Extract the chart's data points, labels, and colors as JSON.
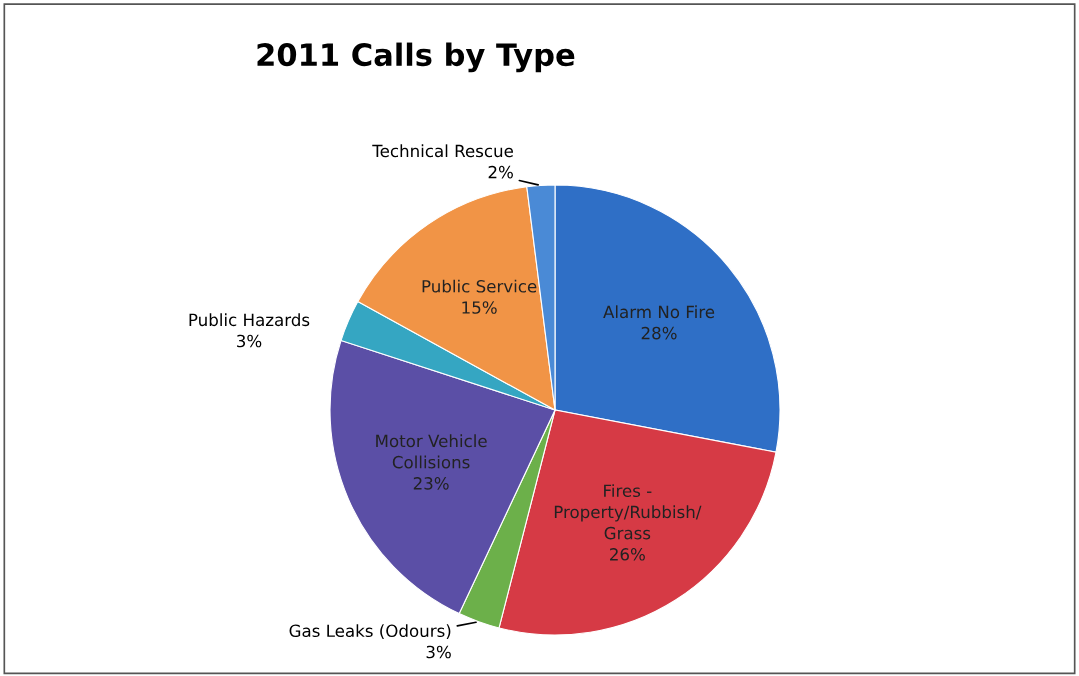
{
  "chart_data": {
    "type": "pie",
    "title": "2011 Calls by Type",
    "categories": [
      "Alarm No Fire",
      "Fires -\nProperty/Rubbish/\nGrass",
      "Gas Leaks (Odours)",
      "Motor Vehicle\nCollisions",
      "Public Hazards",
      "Public Service",
      "Technical Rescue"
    ],
    "values": [
      28,
      26,
      3,
      23,
      3,
      15,
      2
    ],
    "value_labels": [
      "28%",
      "26%",
      "3%",
      "23%",
      "3%",
      "15%",
      "2%"
    ],
    "colors": [
      "#2f6fc6",
      "#d63a45",
      "#6cb04a",
      "#5b4fa6",
      "#35a6c2",
      "#f19446",
      "#4a8ad6"
    ],
    "legend": false
  }
}
